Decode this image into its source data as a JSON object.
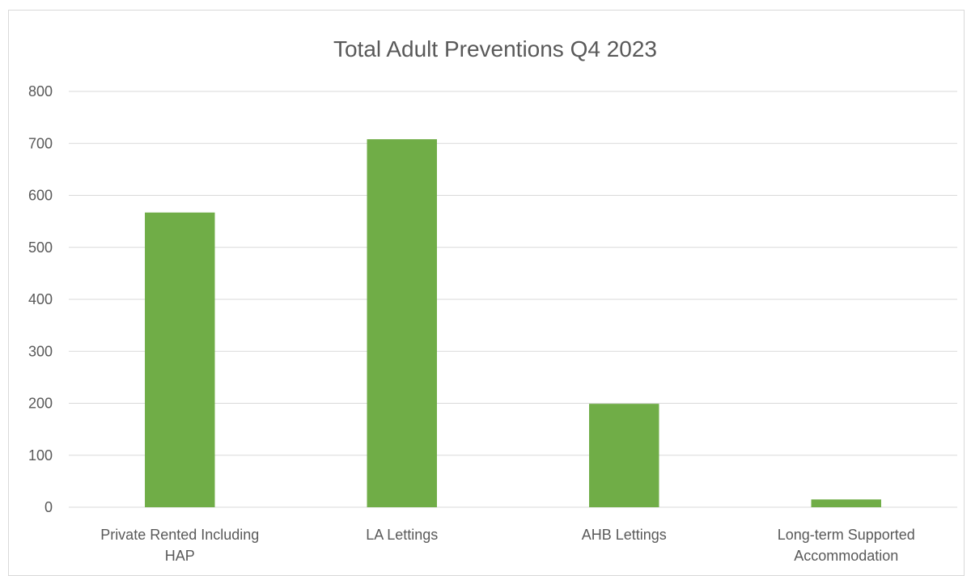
{
  "chart_data": {
    "type": "bar",
    "title": "Total Adult Preventions Q4 2023",
    "xlabel": "",
    "ylabel": "",
    "categories": [
      [
        "Private Rented Including",
        "HAP"
      ],
      [
        "LA Lettings"
      ],
      [
        "AHB Lettings"
      ],
      [
        "Long-term Supported",
        "Accommodation"
      ]
    ],
    "values": [
      567,
      708,
      199,
      15
    ],
    "ylim": [
      0,
      800
    ],
    "yticks": [
      0,
      100,
      200,
      300,
      400,
      500,
      600,
      700,
      800
    ],
    "grid": true,
    "legend": "none",
    "colors": {
      "bar": "#70AD47",
      "grid": "#d9d9d9",
      "text": "#595959"
    }
  }
}
